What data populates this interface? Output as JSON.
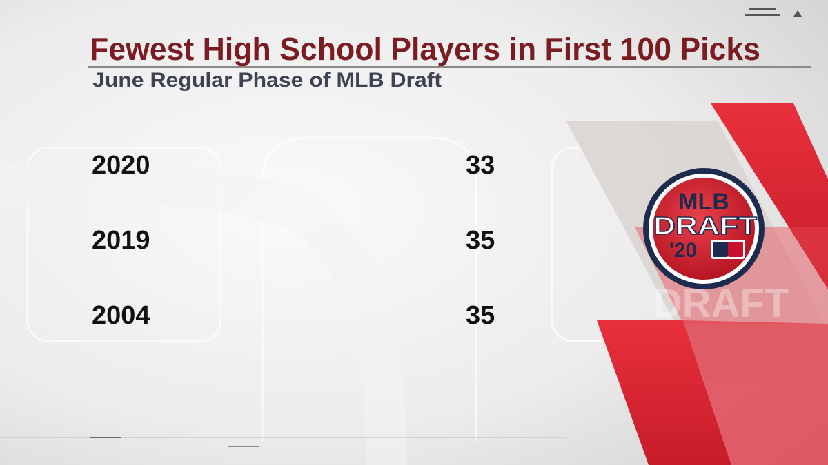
{
  "header": {
    "title": "Fewest High School Players in First 100 Picks",
    "subtitle": "June Regular Phase of MLB Draft"
  },
  "table": {
    "rows": [
      [
        "2020",
        "33"
      ],
      [
        "2019",
        "35"
      ],
      [
        "2004",
        "35"
      ]
    ]
  },
  "logo": {
    "line1": "MLB",
    "line2": "DRAFT",
    "line3": "'20"
  }
}
